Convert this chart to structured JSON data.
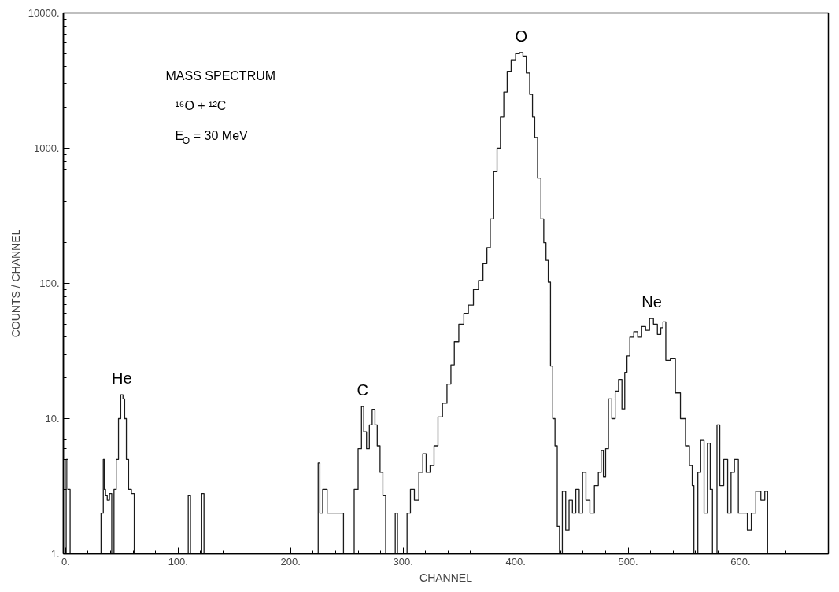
{
  "chart_data": {
    "type": "step",
    "title": "MASS   SPECTRUM",
    "subtitle": "¹⁶O  +  ¹²C",
    "annotations": [
      "E$_{O}$ = 30 MeV",
      {
        "text": "He",
        "x": 50,
        "y": 15
      },
      {
        "text": "C",
        "x": 264,
        "y": 12.3
      },
      {
        "text": "O",
        "x": 405,
        "y": 5100
      },
      {
        "text": "Ne",
        "x": 521,
        "y": 55
      }
    ],
    "xlabel": "CHANNEL",
    "ylabel": "COUNTS / CHANNEL",
    "log": "y",
    "grid": false,
    "color": "#1a1a1a",
    "x": [
      0,
      1,
      3,
      5,
      30,
      33,
      34,
      35,
      36,
      38,
      40,
      42,
      44,
      46,
      48,
      50,
      52,
      53,
      55,
      57,
      60,
      62,
      108,
      110,
      112,
      120,
      122,
      124,
      222,
      224,
      225,
      227,
      230,
      235,
      240,
      246,
      248,
      255,
      258,
      262,
      264,
      266,
      269,
      271,
      274,
      276,
      278,
      281,
      283,
      286,
      292,
      294,
      296,
      302,
      305,
      308,
      312,
      316,
      319,
      322,
      326,
      329,
      333,
      337,
      341,
      344,
      347,
      352,
      356,
      360,
      365,
      369,
      373,
      376,
      379,
      382,
      385,
      388,
      391,
      394,
      398,
      402,
      405,
      408,
      411,
      414,
      416,
      418,
      421,
      424,
      426,
      428,
      430,
      432,
      434,
      436,
      438,
      440,
      443,
      446,
      449,
      452,
      455,
      458,
      461,
      464,
      468,
      472,
      475,
      477,
      479,
      481,
      484,
      487,
      490,
      493,
      496,
      498,
      500,
      503,
      507,
      510,
      514,
      517,
      521,
      524,
      528,
      530,
      532,
      535,
      540,
      544,
      549,
      553,
      556,
      558,
      559,
      561,
      563,
      566,
      569,
      572,
      574,
      576,
      578,
      580,
      583,
      587,
      590,
      593,
      596,
      600,
      604,
      608,
      611,
      616,
      620,
      623,
      625,
      627
    ],
    "values": [
      1,
      5,
      3,
      1,
      1,
      2,
      5,
      3,
      2.7,
      2.5,
      2.8,
      1,
      3,
      5,
      10,
      15,
      14,
      10,
      5,
      3,
      2.8,
      1,
      1,
      2.7,
      1,
      1,
      2.8,
      1,
      1,
      1,
      4.7,
      2,
      3,
      2,
      2,
      2,
      1,
      1,
      3,
      6,
      12.3,
      8,
      6,
      9,
      11.7,
      9,
      6.3,
      4,
      2.7,
      1,
      1,
      2,
      1,
      1,
      2,
      3,
      2.5,
      4,
      5.5,
      4,
      4.5,
      6.3,
      10.3,
      13,
      18,
      25,
      37,
      50,
      60,
      69,
      90,
      105,
      140,
      184,
      300,
      670,
      1000,
      1700,
      2600,
      3700,
      4500,
      5000,
      5100,
      4800,
      3600,
      2500,
      1700,
      1200,
      600,
      300,
      200,
      148,
      102,
      24.5,
      10,
      6.3,
      1.6,
      1,
      2.9,
      1.5,
      2.5,
      2,
      3,
      2,
      4,
      2.5,
      2,
      3.2,
      4,
      5.8,
      3.7,
      6,
      14,
      10,
      16,
      19.5,
      11.8,
      22,
      29,
      40,
      44,
      40,
      48,
      45,
      55,
      50,
      42,
      47,
      52,
      27,
      28,
      15.5,
      10,
      6.3,
      4.5,
      3.2,
      1,
      1,
      4,
      6.9,
      2,
      6.6,
      3,
      1,
      1,
      9,
      3.2,
      5,
      2,
      4,
      5,
      2,
      2,
      1.5,
      2,
      2.9,
      2.5,
      2.9,
      1,
      1
    ],
    "xlim": [
      -2,
      678
    ],
    "xticks": [
      {
        "value": 0,
        "label": "0."
      },
      {
        "value": 20,
        "label": null
      },
      {
        "value": 40,
        "label": null
      },
      {
        "value": 60,
        "label": null
      },
      {
        "value": 80,
        "label": null
      },
      {
        "value": 100,
        "label": "100."
      },
      {
        "value": 120,
        "label": null
      },
      {
        "value": 140,
        "label": null
      },
      {
        "value": 160,
        "label": null
      },
      {
        "value": 180,
        "label": null
      },
      {
        "value": 200,
        "label": "200."
      },
      {
        "value": 220,
        "label": null
      },
      {
        "value": 240,
        "label": null
      },
      {
        "value": 260,
        "label": null
      },
      {
        "value": 280,
        "label": null
      },
      {
        "value": 300,
        "label": "300."
      },
      {
        "value": 320,
        "label": null
      },
      {
        "value": 340,
        "label": null
      },
      {
        "value": 360,
        "label": null
      },
      {
        "value": 380,
        "label": null
      },
      {
        "value": 400,
        "label": "400."
      },
      {
        "value": 420,
        "label": null
      },
      {
        "value": 440,
        "label": null
      },
      {
        "value": 460,
        "label": null
      },
      {
        "value": 480,
        "label": null
      },
      {
        "value": 500,
        "label": "500."
      },
      {
        "value": 520,
        "label": null
      },
      {
        "value": 540,
        "label": null
      },
      {
        "value": 560,
        "label": null
      },
      {
        "value": 580,
        "label": null
      },
      {
        "value": 600,
        "label": "600."
      },
      {
        "value": 620,
        "label": null
      },
      {
        "value": 640,
        "label": null
      },
      {
        "value": 660,
        "label": null
      }
    ],
    "ylim": [
      1,
      10000
    ],
    "yticks": [
      {
        "value": 1,
        "label": "1."
      },
      {
        "value": 2,
        "label": null
      },
      {
        "value": 3,
        "label": null
      },
      {
        "value": 4,
        "label": null
      },
      {
        "value": 5,
        "label": null
      },
      {
        "value": 6,
        "label": null
      },
      {
        "value": 7,
        "label": null
      },
      {
        "value": 8,
        "label": null
      },
      {
        "value": 9,
        "label": null
      },
      {
        "value": 10,
        "label": "10."
      },
      {
        "value": 20,
        "label": null
      },
      {
        "value": 30,
        "label": null
      },
      {
        "value": 40,
        "label": null
      },
      {
        "value": 50,
        "label": null
      },
      {
        "value": 60,
        "label": null
      },
      {
        "value": 70,
        "label": null
      },
      {
        "value": 80,
        "label": null
      },
      {
        "value": 90,
        "label": null
      },
      {
        "value": 100,
        "label": "100."
      },
      {
        "value": 200,
        "label": null
      },
      {
        "value": 300,
        "label": null
      },
      {
        "value": 400,
        "label": null
      },
      {
        "value": 500,
        "label": null
      },
      {
        "value": 600,
        "label": null
      },
      {
        "value": 700,
        "label": null
      },
      {
        "value": 800,
        "label": null
      },
      {
        "value": 900,
        "label": null
      },
      {
        "value": 1000,
        "label": "1000."
      },
      {
        "value": 2000,
        "label": null
      },
      {
        "value": 3000,
        "label": null
      },
      {
        "value": 4000,
        "label": null
      },
      {
        "value": 5000,
        "label": null
      },
      {
        "value": 6000,
        "label": null
      },
      {
        "value": 7000,
        "label": null
      },
      {
        "value": 8000,
        "label": null
      },
      {
        "value": 9000,
        "label": null
      },
      {
        "value": 10000,
        "label": "10000."
      }
    ]
  }
}
